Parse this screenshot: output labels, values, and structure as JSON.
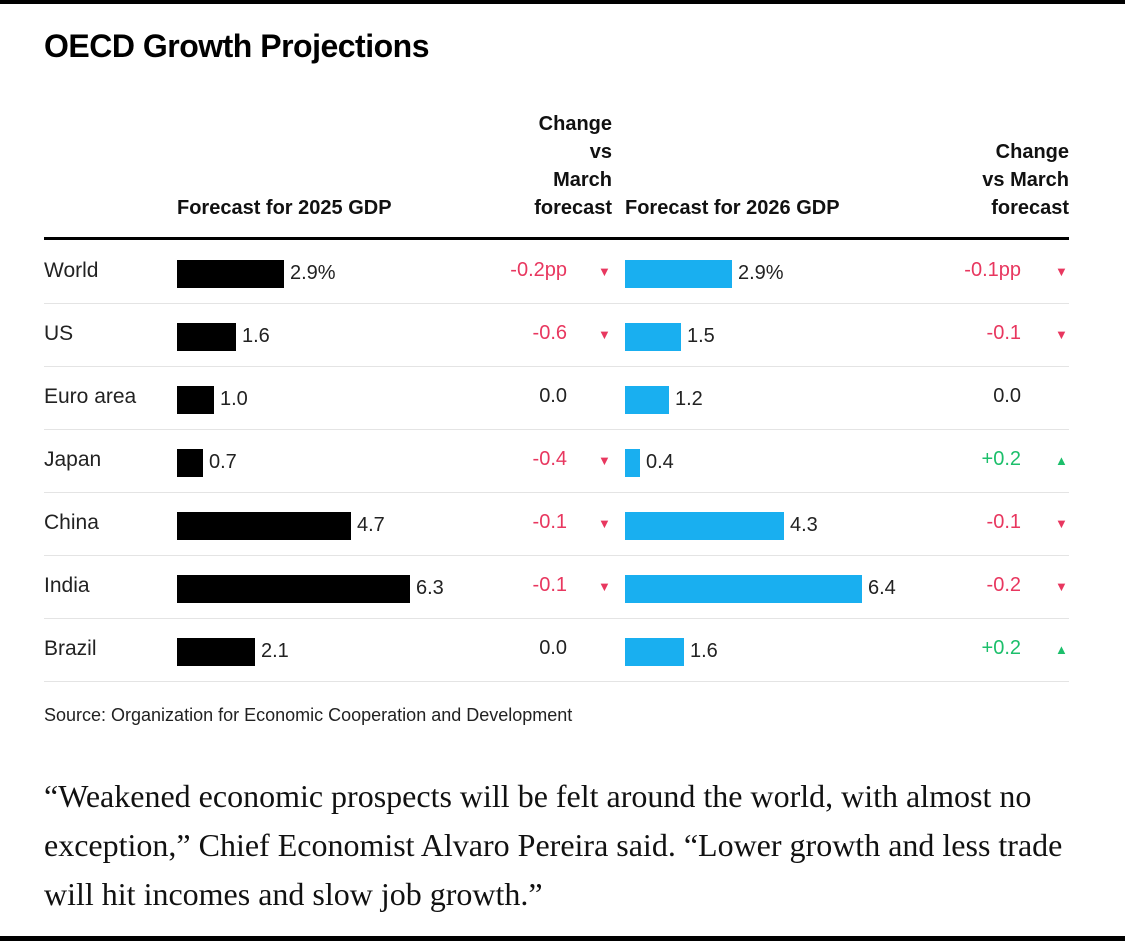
{
  "title": "OECD Growth Projections",
  "headers": {
    "forecast_2025": "Forecast for 2025 GDP",
    "change_2025": "Change\nvs\nMarch\nforecast",
    "forecast_2026": "Forecast for 2026 GDP",
    "change_2026": "Change\nvs March\nforecast"
  },
  "colors": {
    "bar_2025": "#000000",
    "bar_2026": "#19aff0",
    "negative": "#e8375f",
    "positive": "#1cbf6b"
  },
  "chart_data": {
    "type": "bar",
    "categories": [
      "World",
      "US",
      "Euro area",
      "Japan",
      "China",
      "India",
      "Brazil"
    ],
    "series": [
      {
        "name": "Forecast for 2025 GDP",
        "values": [
          2.9,
          1.6,
          1.0,
          0.7,
          4.7,
          6.3,
          2.1
        ],
        "labels": [
          "2.9%",
          "1.6",
          "1.0",
          "0.7",
          "4.7",
          "6.3",
          "2.1"
        ],
        "change_labels": [
          "-0.2pp",
          "-0.6",
          "0.0",
          "-0.4",
          "-0.1",
          "-0.1",
          "0.0"
        ],
        "change_direction": [
          "down",
          "down",
          "none",
          "down",
          "down",
          "down",
          "none"
        ]
      },
      {
        "name": "Forecast for 2026 GDP",
        "values": [
          2.9,
          1.5,
          1.2,
          0.4,
          4.3,
          6.4,
          1.6
        ],
        "labels": [
          "2.9%",
          "1.5",
          "1.2",
          "0.4",
          "4.3",
          "6.4",
          "1.6"
        ],
        "change_labels": [
          "-0.1pp",
          "-0.1",
          "0.0",
          "+0.2",
          "-0.1",
          "-0.2",
          "+0.2"
        ],
        "change_direction": [
          "down",
          "down",
          "none",
          "up",
          "down",
          "down",
          "up"
        ]
      }
    ],
    "arrow_glyphs": {
      "down": "▼",
      "up": "▲"
    }
  },
  "source": "Source: Organization for Economic Cooperation and Development",
  "quote": "“Weakened economic prospects will be felt around the world, with almost no exception,” Chief Economist Alvaro Pereira said. “Lower growth and less trade will hit incomes and slow job growth.”"
}
